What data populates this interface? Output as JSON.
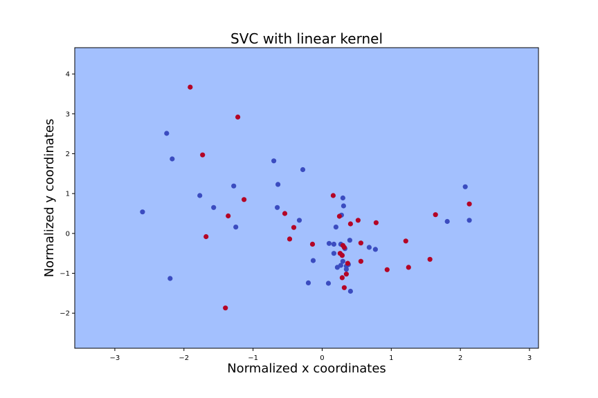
{
  "chart_data": {
    "type": "scatter",
    "title": "SVC with linear kernel",
    "xlabel": "Normalized x coordinates",
    "ylabel": "Normalized y coordinates",
    "xlim": [
      -3.58,
      3.13
    ],
    "ylim": [
      -2.88,
      4.66
    ],
    "x_ticks": [
      -3,
      -2,
      -1,
      0,
      1,
      2,
      3
    ],
    "y_ticks": [
      -2,
      -1,
      0,
      1,
      2,
      3,
      4
    ],
    "x_tick_labels": [
      "−3",
      "−2",
      "−1",
      "0",
      "1",
      "2",
      "3"
    ],
    "y_tick_labels": [
      "−2",
      "−1",
      "0",
      "1",
      "2",
      "3",
      "4"
    ],
    "decision_region_color": "#a3c0fe",
    "grid": false,
    "series": [
      {
        "color": "#3b4cc0",
        "points": [
          [
            -2.6,
            0.54
          ],
          [
            -2.25,
            2.51
          ],
          [
            -2.17,
            1.87
          ],
          [
            -2.2,
            -1.13
          ],
          [
            -1.77,
            0.95
          ],
          [
            -1.57,
            0.65
          ],
          [
            -1.28,
            1.19
          ],
          [
            -1.25,
            0.16
          ],
          [
            -0.7,
            1.82
          ],
          [
            -0.64,
            1.23
          ],
          [
            -0.65,
            0.65
          ],
          [
            -0.28,
            1.6
          ],
          [
            -0.33,
            0.33
          ],
          [
            -0.2,
            -1.24
          ],
          [
            -0.13,
            -0.68
          ],
          [
            0.09,
            -1.25
          ],
          [
            0.1,
            -0.25
          ],
          [
            0.17,
            -0.27
          ],
          [
            0.2,
            0.16
          ],
          [
            0.17,
            -0.5
          ],
          [
            0.22,
            -0.85
          ],
          [
            0.27,
            -0.27
          ],
          [
            0.28,
            0.46
          ],
          [
            0.3,
            0.89
          ],
          [
            0.31,
            0.69
          ],
          [
            0.27,
            -0.8
          ],
          [
            0.35,
            -0.82
          ],
          [
            0.38,
            -0.78
          ],
          [
            0.4,
            -0.17
          ],
          [
            0.33,
            -0.38
          ],
          [
            0.29,
            -0.55
          ],
          [
            0.3,
            -0.7
          ],
          [
            0.35,
            -0.9
          ],
          [
            0.41,
            -1.45
          ],
          [
            0.68,
            -0.35
          ],
          [
            0.77,
            -0.4
          ],
          [
            1.81,
            0.3
          ],
          [
            2.07,
            1.17
          ],
          [
            2.13,
            0.33
          ]
        ]
      },
      {
        "color": "#b40426",
        "points": [
          [
            -1.91,
            3.67
          ],
          [
            -1.73,
            1.97
          ],
          [
            -1.68,
            -0.08
          ],
          [
            -1.36,
            0.44
          ],
          [
            -1.4,
            -1.87
          ],
          [
            -1.22,
            2.92
          ],
          [
            -1.13,
            0.85
          ],
          [
            -0.54,
            0.5
          ],
          [
            -0.47,
            -0.14
          ],
          [
            -0.41,
            0.15
          ],
          [
            -0.14,
            -0.27
          ],
          [
            0.16,
            0.95
          ],
          [
            0.25,
            0.43
          ],
          [
            0.26,
            -0.5
          ],
          [
            0.29,
            -0.55
          ],
          [
            0.3,
            -0.3
          ],
          [
            0.32,
            -0.35
          ],
          [
            0.35,
            -1.02
          ],
          [
            0.29,
            -1.11
          ],
          [
            0.32,
            -1.36
          ],
          [
            0.37,
            -0.75
          ],
          [
            0.41,
            0.24
          ],
          [
            0.52,
            0.33
          ],
          [
            0.56,
            -0.24
          ],
          [
            0.56,
            -0.7
          ],
          [
            0.78,
            0.27
          ],
          [
            0.94,
            -0.91
          ],
          [
            1.21,
            -0.19
          ],
          [
            1.25,
            -0.85
          ],
          [
            1.56,
            -0.65
          ],
          [
            1.64,
            0.47
          ],
          [
            2.13,
            0.74
          ]
        ]
      }
    ]
  }
}
